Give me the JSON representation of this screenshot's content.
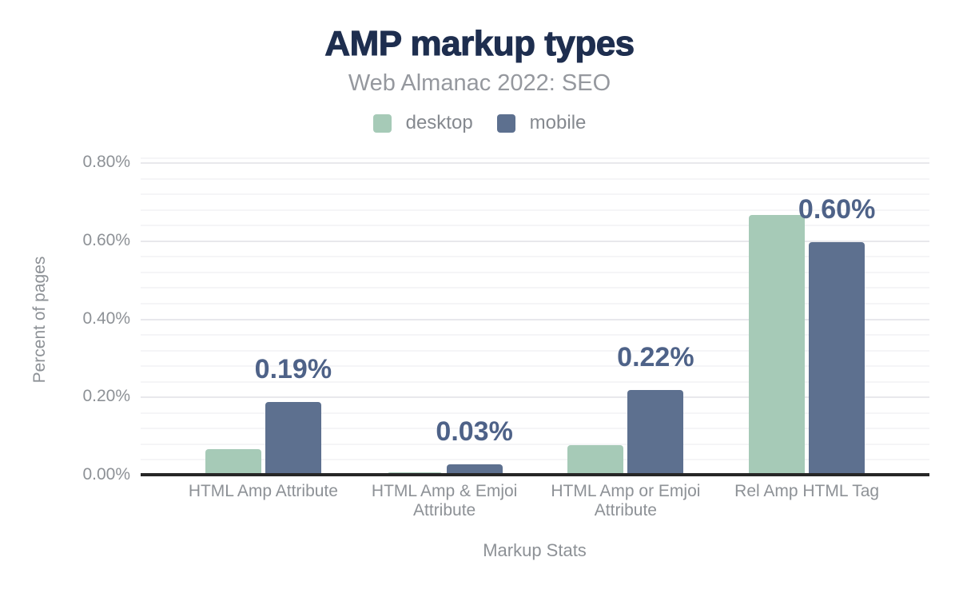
{
  "chart_data": {
    "type": "bar",
    "title": "AMP markup types",
    "subtitle": "Web Almanac 2022: SEO",
    "xlabel": "Markup Stats",
    "ylabel": "Percent of pages",
    "categories": [
      "HTML Amp Attribute",
      "HTML Amp & Emjoi Attribute",
      "HTML Amp or Emjoi Attribute",
      "Rel Amp HTML Tag"
    ],
    "series": [
      {
        "name": "desktop",
        "color": "#a6cab7",
        "values": [
          0.07,
          0.01,
          0.08,
          0.67
        ]
      },
      {
        "name": "mobile",
        "color": "#5d708f",
        "values": [
          0.19,
          0.03,
          0.22,
          0.6
        ]
      }
    ],
    "bar_labels": [
      "0.19%",
      "0.03%",
      "0.22%",
      "0.60%"
    ],
    "bar_labels_series": "mobile",
    "y_ticks": [
      "0.00%",
      "0.20%",
      "0.40%",
      "0.60%",
      "0.80%"
    ],
    "ylim": [
      0,
      0.8
    ],
    "y_major_step": 0.2,
    "y_minor_step": 0.04,
    "grid": "horizontal",
    "legend_position": "top",
    "colors": {
      "title": "#1e2e4f",
      "subtitle": "#95989e",
      "legend_text": "#85898f",
      "axis_text": "#8d9196",
      "data_label": "#4e6288",
      "axis_line": "#262626",
      "grid_major": "#e8e8ec",
      "grid_minor": "#f5f5f7",
      "background": "#ffffff"
    }
  }
}
